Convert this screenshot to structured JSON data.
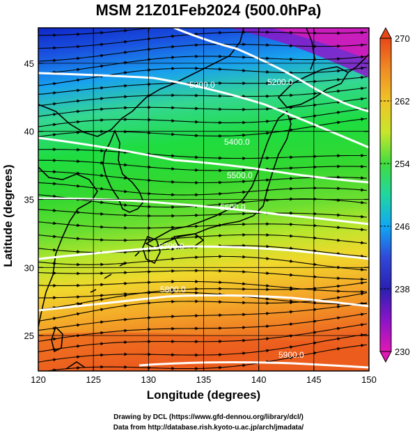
{
  "title": "MSM 21Z01Feb2024 (500.0hPa)",
  "xlabel": "Longitude (degrees)",
  "ylabel": "Latitude  (degrees)",
  "credits": {
    "line1": "Drawing by DCL (https://www.gfd-dennou.org/library/dcl/)",
    "line2": "Data from http://database.rish.kyoto-u.ac.jp/arch/jmadata/"
  },
  "map": {
    "lon_range": [
      120,
      150
    ],
    "lat_range": [
      22.4,
      47.6
    ],
    "lon_ticks": [
      "120",
      "125",
      "130",
      "135",
      "140",
      "145",
      "150"
    ],
    "lat_ticks": [
      "25",
      "30",
      "35",
      "40",
      "45"
    ],
    "grid_lon": [
      125,
      130,
      135,
      140,
      145
    ],
    "grid_lat": [
      25,
      30,
      35,
      40,
      45
    ]
  },
  "colorbar": {
    "range": [
      230,
      270
    ],
    "labels": [
      "270",
      "262",
      "254",
      "246",
      "238",
      "230"
    ],
    "colors": [
      "#e84818",
      "#f08c24",
      "#f0c428",
      "#d6e830",
      "#6ae23c",
      "#22dc50",
      "#28d6c0",
      "#10a8f4",
      "#3450dc",
      "#2820b4",
      "#8c14c8",
      "#e018b4"
    ]
  },
  "contours": [
    {
      "label": "5200.0"
    },
    {
      "label": "5300.0"
    },
    {
      "label": "5400.0"
    },
    {
      "label": "5500.0"
    },
    {
      "label": "5600.0"
    },
    {
      "label": "5700.0"
    },
    {
      "label": "5800.0"
    },
    {
      "label": "5900.0"
    }
  ]
}
